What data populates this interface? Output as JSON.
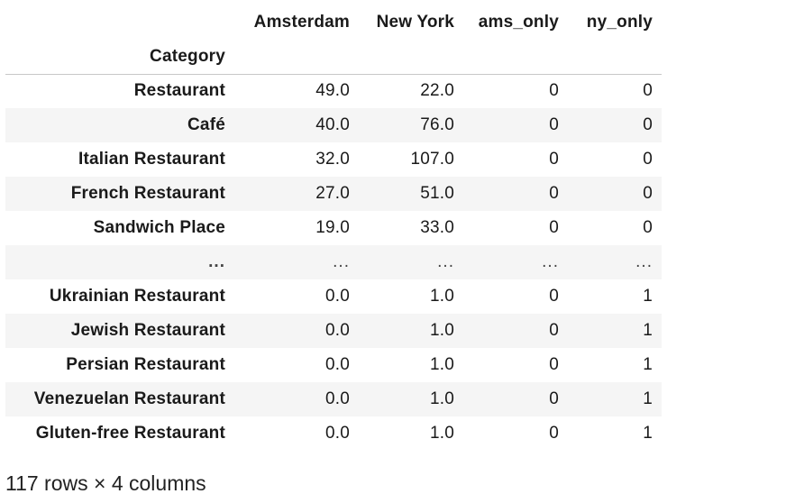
{
  "table": {
    "columns": [
      "Amsterdam",
      "New York",
      "ams_only",
      "ny_only"
    ],
    "index_name": "Category",
    "rows": [
      {
        "index": "Restaurant",
        "values": [
          "49.0",
          "22.0",
          "0",
          "0"
        ]
      },
      {
        "index": "Café",
        "values": [
          "40.0",
          "76.0",
          "0",
          "0"
        ]
      },
      {
        "index": "Italian Restaurant",
        "values": [
          "32.0",
          "107.0",
          "0",
          "0"
        ]
      },
      {
        "index": "French Restaurant",
        "values": [
          "27.0",
          "51.0",
          "0",
          "0"
        ]
      },
      {
        "index": "Sandwich Place",
        "values": [
          "19.0",
          "33.0",
          "0",
          "0"
        ]
      },
      {
        "index": "...",
        "values": [
          "...",
          "...",
          "...",
          "..."
        ]
      },
      {
        "index": "Ukrainian Restaurant",
        "values": [
          "0.0",
          "1.0",
          "0",
          "1"
        ]
      },
      {
        "index": "Jewish Restaurant",
        "values": [
          "0.0",
          "1.0",
          "0",
          "1"
        ]
      },
      {
        "index": "Persian Restaurant",
        "values": [
          "0.0",
          "1.0",
          "0",
          "1"
        ]
      },
      {
        "index": "Venezuelan Restaurant",
        "values": [
          "0.0",
          "1.0",
          "0",
          "1"
        ]
      },
      {
        "index": "Gluten-free Restaurant",
        "values": [
          "0.0",
          "1.0",
          "0",
          "1"
        ]
      }
    ]
  },
  "footer": "117 rows × 4 columns"
}
